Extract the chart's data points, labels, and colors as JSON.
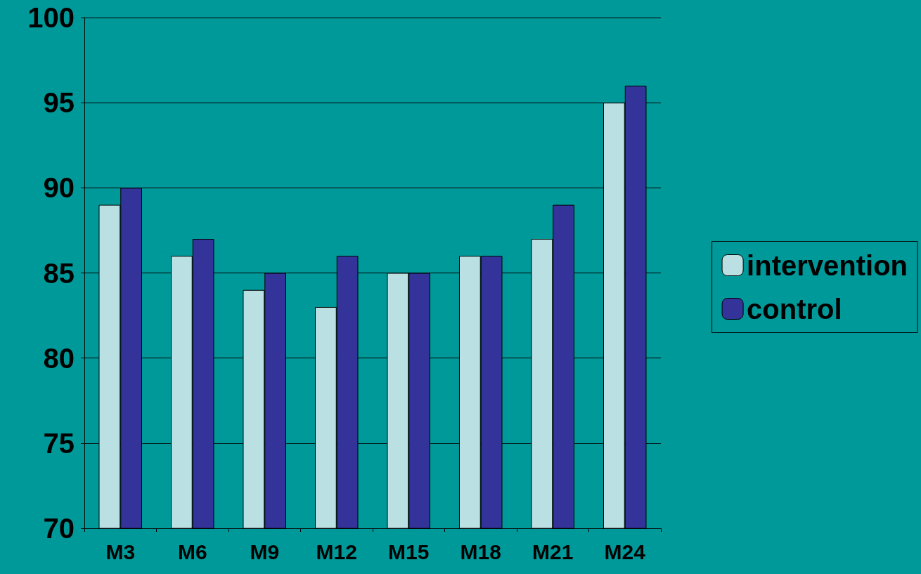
{
  "chart_data": {
    "type": "bar",
    "categories": [
      "M3",
      "M6",
      "M9",
      "M12",
      "M15",
      "M18",
      "M21",
      "M24"
    ],
    "series": [
      {
        "name": "intervention",
        "color": "#bbe0e3",
        "values": [
          89,
          86,
          84,
          83,
          85,
          86,
          87,
          95
        ]
      },
      {
        "name": "control",
        "color": "#333399",
        "values": [
          90,
          87,
          85,
          86,
          85,
          86,
          89,
          96
        ]
      }
    ],
    "ylim": [
      70,
      100
    ],
    "yticks": [
      70,
      75,
      80,
      85,
      90,
      95,
      100
    ],
    "grid": "y",
    "legend": "right"
  }
}
